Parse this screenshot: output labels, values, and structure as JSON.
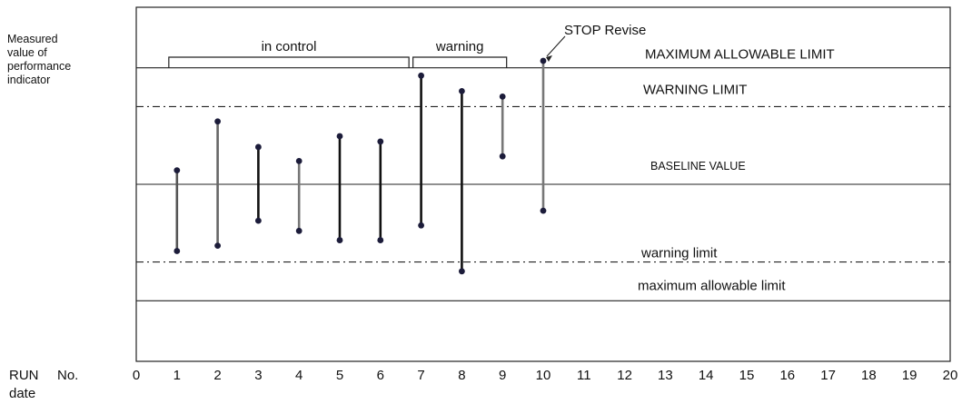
{
  "chart_data": {
    "type": "range",
    "title": "",
    "ylabel": "Measured\nvalue of\nperformance\nindicator",
    "xlabel_run": "RUN",
    "xlabel_no": "No.",
    "xlabel_date": "date",
    "x_ticks": [
      0,
      1,
      2,
      3,
      4,
      5,
      6,
      7,
      8,
      9,
      10,
      11,
      12,
      13,
      14,
      15,
      16,
      17,
      18,
      19,
      20
    ],
    "xlim": [
      0,
      20
    ],
    "ylim": [
      -1.52,
      1.52
    ],
    "lines": [
      {
        "name": "max_upper",
        "label": "MAXIMUM ALLOWABLE LIMIT",
        "value": 1,
        "style": "solid"
      },
      {
        "name": "warn_upper",
        "label": "WARNING LIMIT",
        "value": 0.667,
        "style": "dashdot"
      },
      {
        "name": "baseline",
        "label": "BASELINE VALUE",
        "value": 0,
        "style": "solid"
      },
      {
        "name": "warn_lower",
        "label": "warning limit",
        "value": -0.667,
        "style": "dashdot"
      },
      {
        "name": "max_lower",
        "label": "maximum allowable limit",
        "value": -1,
        "style": "solid"
      }
    ],
    "runs": [
      {
        "x": 1,
        "low": -0.573,
        "high": 0.12,
        "color": "#555555"
      },
      {
        "x": 2,
        "low": -0.527,
        "high": 0.54,
        "color": "#666666"
      },
      {
        "x": 3,
        "low": -0.313,
        "high": 0.32,
        "color": "#111111"
      },
      {
        "x": 4,
        "low": -0.4,
        "high": 0.2,
        "color": "#777777"
      },
      {
        "x": 5,
        "low": -0.48,
        "high": 0.413,
        "color": "#111111"
      },
      {
        "x": 6,
        "low": -0.48,
        "high": 0.367,
        "color": "#111111"
      },
      {
        "x": 7,
        "low": -0.353,
        "high": 0.933,
        "color": "#111111"
      },
      {
        "x": 8,
        "low": -0.747,
        "high": 0.8,
        "color": "#111111"
      },
      {
        "x": 9,
        "low": 0.24,
        "high": 0.753,
        "color": "#777777"
      },
      {
        "x": 10,
        "low": -0.227,
        "high": 1.06,
        "color": "#777777"
      }
    ],
    "brackets": [
      {
        "label": "in control",
        "x_start": 0.8,
        "x_end": 6.7
      },
      {
        "label": "warning",
        "x_start": 6.8,
        "x_end": 9.1
      }
    ],
    "annotation": {
      "label": "STOP Revise",
      "target_x": 10,
      "target_y": 1.06
    }
  }
}
